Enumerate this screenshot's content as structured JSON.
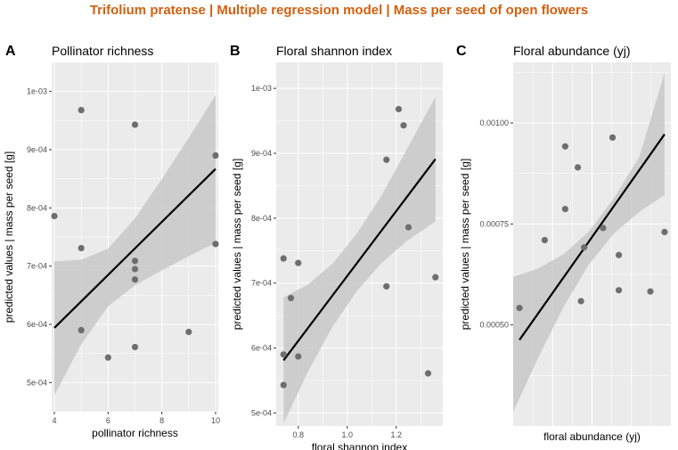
{
  "page_title": "Trifolium pratense | Multiple regression model | Mass per seed of open flowers",
  "chart_data": [
    {
      "type": "scatter",
      "tag": "A",
      "title": "Pollinator richness",
      "xlabel": "pollinator richness",
      "ylabel": "predicted values | mass per seed [g]",
      "xlim": [
        3.9,
        10.1
      ],
      "ylim": [
        0.00045,
        0.00105
      ],
      "x_ticks": [
        4,
        6,
        8,
        10
      ],
      "x_tick_labels": [
        "4",
        "6",
        "8",
        "10"
      ],
      "y_ticks": [
        0.0005,
        0.0006,
        0.0007,
        0.0008,
        0.0009,
        0.001
      ],
      "y_tick_labels": [
        "5e-04",
        "6e-04",
        "7e-04",
        "8e-04",
        "9e-04",
        "1e-03"
      ],
      "points": [
        {
          "x": 4,
          "y": 0.000786
        },
        {
          "x": 5,
          "y": 0.000968
        },
        {
          "x": 5,
          "y": 0.000731
        },
        {
          "x": 5,
          "y": 0.00059
        },
        {
          "x": 6,
          "y": 0.000543
        },
        {
          "x": 7,
          "y": 0.000943
        },
        {
          "x": 7,
          "y": 0.000709
        },
        {
          "x": 7,
          "y": 0.000695
        },
        {
          "x": 7,
          "y": 0.000677
        },
        {
          "x": 7,
          "y": 0.000561
        },
        {
          "x": 9,
          "y": 0.000587
        },
        {
          "x": 10,
          "y": 0.00089
        },
        {
          "x": 10,
          "y": 0.000738
        }
      ],
      "fit_line": {
        "x": [
          4,
          10
        ],
        "y": [
          0.000594,
          0.000867
        ]
      },
      "confidence_band": {
        "x": [
          4,
          5,
          6,
          7,
          8,
          9,
          10
        ],
        "lower": [
          0.000478,
          0.000566,
          0.000631,
          0.000667,
          0.000693,
          0.000717,
          0.00074
        ],
        "upper": [
          0.000708,
          0.000711,
          0.00073,
          0.000782,
          0.00085,
          0.00092,
          0.000994
        ]
      },
      "grid": true,
      "colors": {
        "panel": "#ebebeb",
        "grid": "#ffffff",
        "points": "#6e6e6e",
        "line": "#000000",
        "band": "#c8c8c8"
      }
    },
    {
      "type": "scatter",
      "tag": "B",
      "title": "Floral shannon index",
      "xlabel": "floral shannon index",
      "ylabel": "predicted values | mass per seed [g]",
      "xlim": [
        0.71,
        1.39
      ],
      "ylim": [
        0.00048,
        0.00104
      ],
      "x_ticks": [
        0.8,
        1.0,
        1.2
      ],
      "x_tick_labels": [
        "0.8",
        "1.0",
        "1.2"
      ],
      "y_ticks": [
        0.0005,
        0.0006,
        0.0007,
        0.0008,
        0.0009,
        0.001
      ],
      "y_tick_labels": [
        "5e-04",
        "6e-04",
        "7e-04",
        "8e-04",
        "9e-04",
        "1e-03"
      ],
      "points": [
        {
          "x": 0.74,
          "y": 0.000738
        },
        {
          "x": 0.74,
          "y": 0.00059
        },
        {
          "x": 0.74,
          "y": 0.000543
        },
        {
          "x": 0.77,
          "y": 0.000677
        },
        {
          "x": 0.8,
          "y": 0.000731
        },
        {
          "x": 0.8,
          "y": 0.000587
        },
        {
          "x": 1.16,
          "y": 0.00089
        },
        {
          "x": 1.16,
          "y": 0.000695
        },
        {
          "x": 1.21,
          "y": 0.000968
        },
        {
          "x": 1.23,
          "y": 0.000943
        },
        {
          "x": 1.25,
          "y": 0.000786
        },
        {
          "x": 1.33,
          "y": 0.000561
        },
        {
          "x": 1.36,
          "y": 0.000709
        }
      ],
      "fit_line": {
        "x": [
          0.74,
          1.36
        ],
        "y": [
          0.000581,
          0.000891
        ]
      },
      "confidence_band": {
        "x": [
          0.74,
          0.84,
          0.94,
          1.04,
          1.14,
          1.24,
          1.36
        ],
        "lower": [
          0.000484,
          0.000564,
          0.000633,
          0.000688,
          0.000731,
          0.000764,
          0.000795
        ],
        "upper": [
          0.000678,
          0.000698,
          0.00073,
          0.000777,
          0.000835,
          0.000904,
          0.000987
        ]
      },
      "grid": true,
      "colors": {
        "panel": "#ebebeb",
        "grid": "#ffffff",
        "points": "#6e6e6e",
        "line": "#000000",
        "band": "#c8c8c8"
      }
    },
    {
      "type": "scatter",
      "tag": "C",
      "title": "Floral abundance (yj)",
      "xlabel": "floral abundance (yj)",
      "ylabel": "predicted values | mass per seed [g]",
      "xlim": [
        0,
        10
      ],
      "ylim": [
        0.00025,
        0.00115
      ],
      "x_ticks": [],
      "x_tick_labels": [],
      "y_ticks": [
        0.0005,
        0.00075,
        0.001
      ],
      "y_tick_labels": [
        "0.00050",
        "0.00075",
        "0.00100"
      ],
      "points": [
        {
          "x": 0.4,
          "y": 0.000542
        },
        {
          "x": 2.0,
          "y": 0.00071
        },
        {
          "x": 3.3,
          "y": 0.000942
        },
        {
          "x": 3.3,
          "y": 0.000787
        },
        {
          "x": 4.1,
          "y": 0.00089
        },
        {
          "x": 4.3,
          "y": 0.000559
        },
        {
          "x": 4.5,
          "y": 0.000692
        },
        {
          "x": 5.7,
          "y": 0.00074
        },
        {
          "x": 6.3,
          "y": 0.000964
        },
        {
          "x": 6.7,
          "y": 0.000673
        },
        {
          "x": 6.7,
          "y": 0.000586
        },
        {
          "x": 8.7,
          "y": 0.000583
        },
        {
          "x": 9.6,
          "y": 0.00073
        }
      ],
      "fit_line": {
        "x": [
          0.4,
          9.6
        ],
        "y": [
          0.000463,
          0.000972
        ]
      },
      "confidence_band": {
        "x": [
          0.0,
          1.6,
          3.2,
          4.8,
          6.4,
          8.0,
          9.6
        ],
        "lower": [
          0.000285,
          0.00042,
          0.000545,
          0.00065,
          0.000727,
          0.00078,
          0.000822
        ],
        "upper": [
          0.000619,
          0.00064,
          0.000675,
          0.000731,
          0.000815,
          0.000916,
          0.001124
        ]
      },
      "grid": true,
      "colors": {
        "panel": "#ebebeb",
        "grid": "#ffffff",
        "points": "#6e6e6e",
        "line": "#000000",
        "band": "#c8c8c8"
      }
    }
  ]
}
